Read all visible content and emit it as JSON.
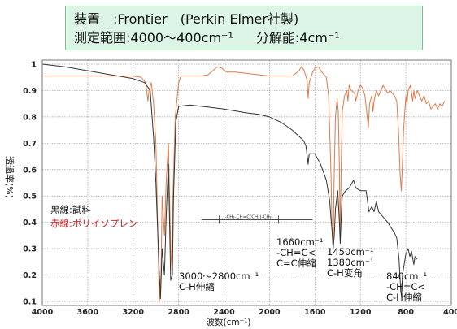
{
  "info": {
    "line1": "装置　:Frontier　(Perkin Elmer社製)",
    "line2a": "測定範囲:4000～400cm⁻¹",
    "line2b": "分解能:4cm⁻¹"
  },
  "legend": {
    "black": "黒線:試料",
    "red": "赤線:ポリイソプレン"
  },
  "annotations": [
    {
      "id": "ch-stretch",
      "lines": [
        "3000～2800cm⁻¹",
        "C-H伸縮"
      ]
    },
    {
      "id": "cc-stretch",
      "lines": [
        "1660cm⁻¹",
        "-CH=C<",
        "C=C伸縮"
      ]
    },
    {
      "id": "ch-bend",
      "lines": [
        "1450cm⁻¹",
        "1380cm⁻¹",
        "C-H変角"
      ]
    },
    {
      "id": "ch-oop",
      "lines": [
        "840cm⁻¹",
        "-CH=C<",
        "C-H伸縮"
      ]
    }
  ],
  "structure_label": "-CH₂-CH=C(CH₃)-CH₂-",
  "colors": {
    "sample": "#333333",
    "reference": "#e07a48",
    "box_bg": "#dcf5e6",
    "box_border": "#7fbf8f"
  },
  "chart_data": {
    "type": "line",
    "xlabel": "波数(cm⁻¹)",
    "ylabel": "透過率(%)",
    "xlim": [
      4000,
      400
    ],
    "ylim": [
      0.1,
      1.0
    ],
    "x_ticks": [
      4000,
      3600,
      3200,
      2800,
      2400,
      2000,
      1600,
      1200,
      800,
      400
    ],
    "y_ticks": [
      0.1,
      0.2,
      0.3,
      0.4,
      0.5,
      0.6,
      0.7,
      0.8,
      0.9,
      1
    ],
    "grid": true,
    "series": [
      {
        "name": "試料",
        "color": "#333333",
        "points": [
          [
            4000,
            1.0
          ],
          [
            3800,
            0.99
          ],
          [
            3600,
            0.975
          ],
          [
            3400,
            0.96
          ],
          [
            3200,
            0.945
          ],
          [
            3100,
            0.93
          ],
          [
            3050,
            0.9
          ],
          [
            3020,
            0.72
          ],
          [
            3000,
            0.55
          ],
          [
            2975,
            0.26
          ],
          [
            2960,
            0.11
          ],
          [
            2945,
            0.3
          ],
          [
            2925,
            0.2
          ],
          [
            2910,
            0.42
          ],
          [
            2890,
            0.62
          ],
          [
            2870,
            0.18
          ],
          [
            2855,
            0.2
          ],
          [
            2845,
            0.5
          ],
          [
            2825,
            0.78
          ],
          [
            2800,
            0.84
          ],
          [
            2700,
            0.845
          ],
          [
            2600,
            0.84
          ],
          [
            2400,
            0.83
          ],
          [
            2200,
            0.815
          ],
          [
            2100,
            0.81
          ],
          [
            2000,
            0.8
          ],
          [
            1900,
            0.78
          ],
          [
            1800,
            0.75
          ],
          [
            1700,
            0.71
          ],
          [
            1680,
            0.69
          ],
          [
            1665,
            0.64
          ],
          [
            1660,
            0.62
          ],
          [
            1650,
            0.66
          ],
          [
            1600,
            0.66
          ],
          [
            1550,
            0.62
          ],
          [
            1500,
            0.56
          ],
          [
            1470,
            0.48
          ],
          [
            1460,
            0.42
          ],
          [
            1450,
            0.37
          ],
          [
            1440,
            0.3
          ],
          [
            1430,
            0.35
          ],
          [
            1420,
            0.45
          ],
          [
            1400,
            0.52
          ],
          [
            1385,
            0.4
          ],
          [
            1378,
            0.32
          ],
          [
            1370,
            0.41
          ],
          [
            1360,
            0.5
          ],
          [
            1330,
            0.52
          ],
          [
            1300,
            0.53
          ],
          [
            1260,
            0.56
          ],
          [
            1240,
            0.53
          ],
          [
            1200,
            0.52
          ],
          [
            1150,
            0.52
          ],
          [
            1125,
            0.44
          ],
          [
            1100,
            0.46
          ],
          [
            1080,
            0.44
          ],
          [
            1060,
            0.48
          ],
          [
            1040,
            0.44
          ],
          [
            1000,
            0.42
          ],
          [
            960,
            0.4
          ],
          [
            930,
            0.38
          ],
          [
            900,
            0.36
          ],
          [
            880,
            0.34
          ],
          [
            860,
            0.26
          ],
          [
            845,
            0.14
          ],
          [
            838,
            0.12
          ],
          [
            830,
            0.2
          ],
          [
            815,
            0.24
          ],
          [
            800,
            0.28
          ],
          [
            780,
            0.3
          ],
          [
            765,
            0.27
          ],
          [
            750,
            0.29
          ],
          [
            730,
            0.24
          ],
          [
            720,
            0.27
          ],
          [
            700,
            0.26
          ]
        ]
      },
      {
        "name": "ポリイソプレン",
        "color": "#e07a48",
        "points": [
          [
            3980,
            0.955
          ],
          [
            3800,
            0.955
          ],
          [
            3600,
            0.955
          ],
          [
            3400,
            0.955
          ],
          [
            3200,
            0.955
          ],
          [
            3130,
            0.95
          ],
          [
            3090,
            0.93
          ],
          [
            3070,
            0.86
          ],
          [
            3060,
            0.9
          ],
          [
            3040,
            0.93
          ],
          [
            3020,
            0.85
          ],
          [
            3000,
            0.7
          ],
          [
            2985,
            0.4
          ],
          [
            2970,
            0.1
          ],
          [
            2955,
            0.2
          ],
          [
            2945,
            0.5
          ],
          [
            2925,
            0.35
          ],
          [
            2910,
            0.55
          ],
          [
            2890,
            0.7
          ],
          [
            2870,
            0.3
          ],
          [
            2860,
            0.22
          ],
          [
            2850,
            0.5
          ],
          [
            2830,
            0.8
          ],
          [
            2800,
            0.93
          ],
          [
            2780,
            0.955
          ],
          [
            2700,
            0.955
          ],
          [
            2600,
            0.955
          ],
          [
            2540,
            0.96
          ],
          [
            2500,
            0.975
          ],
          [
            2460,
            0.99
          ],
          [
            2420,
            0.985
          ],
          [
            2380,
            0.97
          ],
          [
            2300,
            0.97
          ],
          [
            2200,
            0.965
          ],
          [
            2100,
            0.96
          ],
          [
            2000,
            0.955
          ],
          [
            1900,
            0.955
          ],
          [
            1800,
            0.955
          ],
          [
            1740,
            0.975
          ],
          [
            1720,
            0.99
          ],
          [
            1700,
            0.98
          ],
          [
            1670,
            0.94
          ],
          [
            1664,
            0.9
          ],
          [
            1660,
            0.87
          ],
          [
            1650,
            0.93
          ],
          [
            1620,
            0.97
          ],
          [
            1600,
            0.985
          ],
          [
            1570,
            0.99
          ],
          [
            1540,
            0.97
          ],
          [
            1500,
            0.95
          ],
          [
            1480,
            0.88
          ],
          [
            1460,
            0.6
          ],
          [
            1450,
            0.38
          ],
          [
            1440,
            0.3
          ],
          [
            1432,
            0.55
          ],
          [
            1420,
            0.8
          ],
          [
            1405,
            0.87
          ],
          [
            1395,
            0.82
          ],
          [
            1385,
            0.6
          ],
          [
            1378,
            0.34
          ],
          [
            1370,
            0.6
          ],
          [
            1360,
            0.82
          ],
          [
            1340,
            0.88
          ],
          [
            1320,
            0.9
          ],
          [
            1310,
            0.86
          ],
          [
            1300,
            0.92
          ],
          [
            1280,
            0.9
          ],
          [
            1250,
            0.89
          ],
          [
            1240,
            0.86
          ],
          [
            1220,
            0.9
          ],
          [
            1200,
            0.92
          ],
          [
            1180,
            0.91
          ],
          [
            1160,
            0.88
          ],
          [
            1140,
            0.8
          ],
          [
            1130,
            0.76
          ],
          [
            1120,
            0.85
          ],
          [
            1100,
            0.88
          ],
          [
            1090,
            0.82
          ],
          [
            1080,
            0.86
          ],
          [
            1060,
            0.9
          ],
          [
            1040,
            0.88
          ],
          [
            1020,
            0.9
          ],
          [
            1000,
            0.92
          ],
          [
            960,
            0.89
          ],
          [
            940,
            0.9
          ],
          [
            920,
            0.89
          ],
          [
            900,
            0.88
          ],
          [
            880,
            0.86
          ],
          [
            865,
            0.75
          ],
          [
            850,
            0.58
          ],
          [
            840,
            0.52
          ],
          [
            832,
            0.6
          ],
          [
            820,
            0.75
          ],
          [
            800,
            0.88
          ],
          [
            790,
            0.85
          ],
          [
            780,
            0.9
          ],
          [
            760,
            0.92
          ],
          [
            740,
            0.86
          ],
          [
            730,
            0.9
          ],
          [
            720,
            0.87
          ],
          [
            700,
            0.9
          ],
          [
            680,
            0.88
          ],
          [
            660,
            0.86
          ],
          [
            640,
            0.88
          ],
          [
            620,
            0.85
          ],
          [
            600,
            0.86
          ],
          [
            580,
            0.83
          ],
          [
            560,
            0.84
          ],
          [
            540,
            0.85
          ],
          [
            520,
            0.83
          ],
          [
            500,
            0.85
          ],
          [
            480,
            0.84
          ],
          [
            460,
            0.86
          ]
        ]
      }
    ]
  }
}
